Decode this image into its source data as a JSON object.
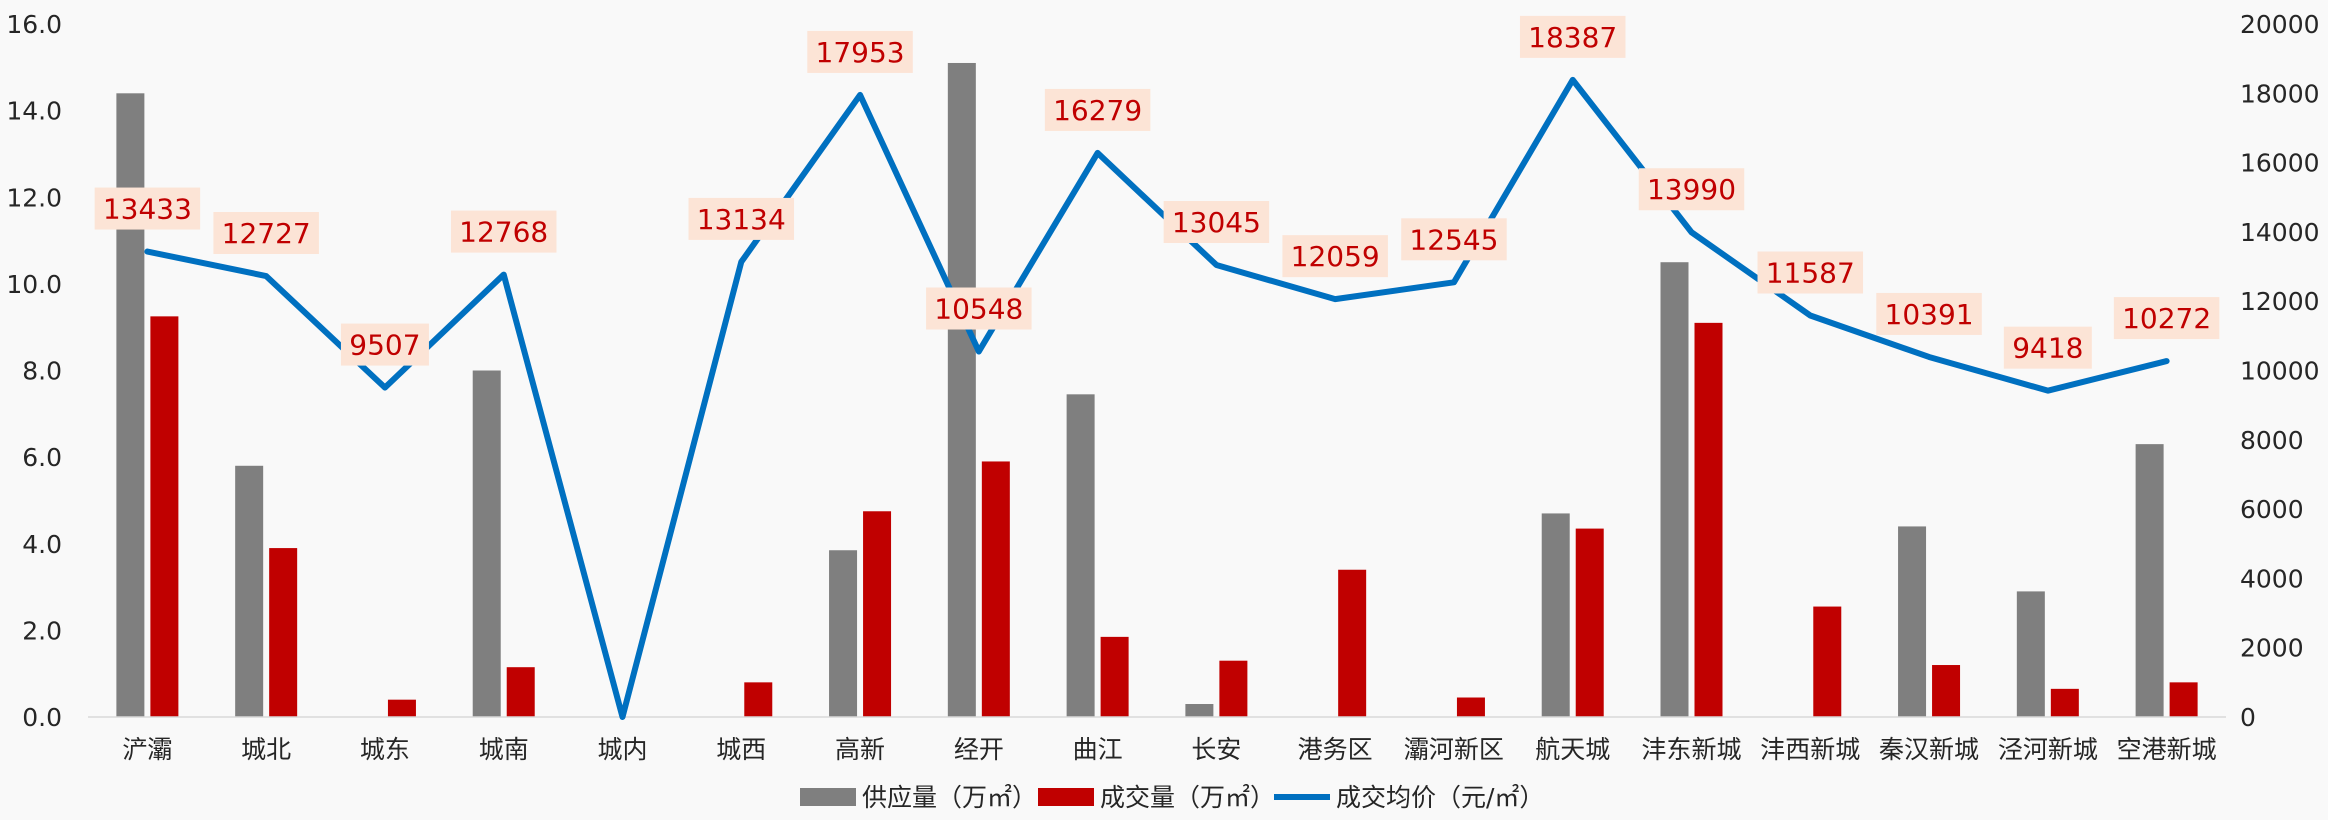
{
  "chart_data": {
    "type": "bar",
    "categories": [
      "浐灞",
      "城北",
      "城东",
      "城南",
      "城内",
      "城西",
      "高新",
      "经开",
      "曲江",
      "长安",
      "港务区",
      "灞河新区",
      "航天城",
      "沣东新城",
      "沣西新城",
      "秦汉新城",
      "泾河新城",
      "空港新城"
    ],
    "series": [
      {
        "name": "供应量（万㎡）",
        "type": "bar",
        "axis": "left",
        "color": "#7f7f7f",
        "values": [
          14.4,
          5.8,
          0,
          8.0,
          0,
          0,
          3.85,
          15.1,
          7.45,
          0.3,
          0,
          0,
          4.7,
          10.5,
          0,
          4.4,
          2.9,
          6.3
        ]
      },
      {
        "name": "成交量（万㎡）",
        "type": "bar",
        "axis": "left",
        "color": "#c00000",
        "values": [
          9.25,
          3.9,
          0.4,
          1.15,
          0,
          0.8,
          4.75,
          5.9,
          1.85,
          1.3,
          3.4,
          0.45,
          4.35,
          9.1,
          2.55,
          1.2,
          0.65,
          0.8
        ]
      },
      {
        "name": "成交均价（元/㎡）",
        "type": "line",
        "axis": "right",
        "color": "#0070c0",
        "values": [
          13433,
          12727,
          9507,
          12768,
          0,
          13134,
          17953,
          10548,
          16279,
          13045,
          12059,
          12545,
          18387,
          13990,
          11587,
          10391,
          9418,
          10272
        ],
        "labels": [
          "13433",
          "12727",
          "9507",
          "12768",
          "",
          "13134",
          "17953",
          "10548",
          "16279",
          "13045",
          "12059",
          "12545",
          "18387",
          "13990",
          "11587",
          "10391",
          "9418",
          "10272"
        ]
      }
    ],
    "y_left": {
      "min": 0,
      "max": 16,
      "step": 2,
      "tick_labels": [
        "0.0",
        "2.0",
        "4.0",
        "6.0",
        "8.0",
        "10.0",
        "12.0",
        "14.0",
        "16.0"
      ]
    },
    "y_right": {
      "min": 0,
      "max": 20000,
      "step": 2000,
      "tick_labels": [
        "0",
        "2000",
        "4000",
        "6000",
        "8000",
        "10000",
        "12000",
        "14000",
        "16000",
        "18000",
        "20000"
      ]
    },
    "grid": false,
    "legend_position": "bottom",
    "label_bg": "#fce4d6"
  }
}
